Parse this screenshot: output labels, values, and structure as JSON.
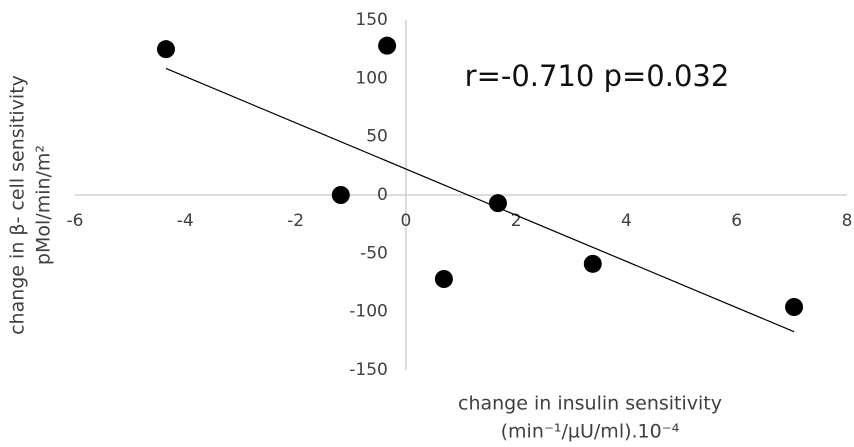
{
  "chart_data": {
    "type": "scatter",
    "annotation": "r=-0.710 p=0.032",
    "xlabel": [
      "change in insulin sensitivity",
      "(min⁻¹/µU/ml).10⁻⁴"
    ],
    "ylabel": [
      "change in β- cell sensitivity",
      "pMol/min/m²"
    ],
    "x": [
      -4.35,
      -0.34,
      -1.18,
      1.67,
      0.69,
      3.39,
      7.04
    ],
    "values": [
      125,
      128,
      0,
      -7,
      -72,
      -59,
      -96
    ],
    "color": "#000000",
    "trendline": true,
    "xlim": [
      -6,
      8
    ],
    "xticks": [
      -6,
      -4,
      -2,
      0,
      2,
      4,
      6,
      8
    ],
    "ylim": [
      -150,
      150
    ],
    "yticks": [
      -150,
      -100,
      -50,
      0,
      50,
      100,
      150
    ]
  }
}
